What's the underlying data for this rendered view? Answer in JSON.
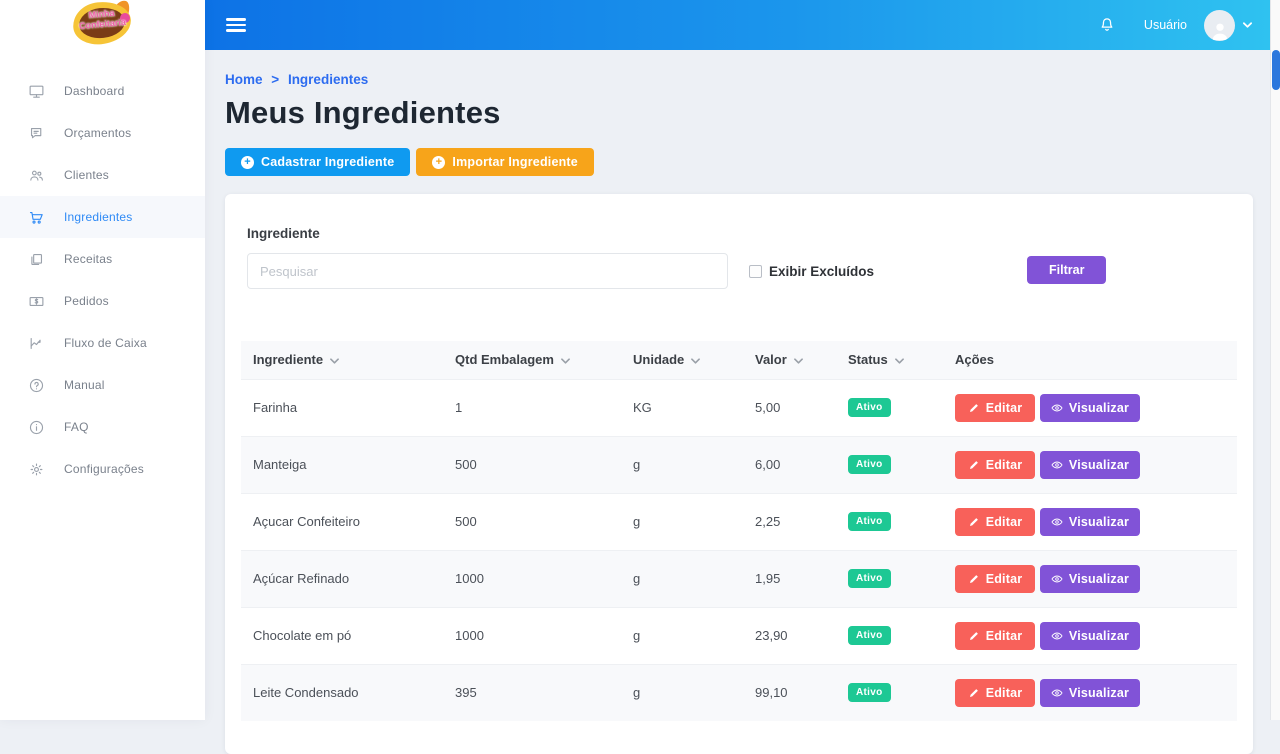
{
  "logo": {
    "line1": "Minha",
    "line2": "Confeitaria"
  },
  "sidebar": {
    "items": [
      {
        "id": "dashboard",
        "label": "Dashboard",
        "icon": "monitor-icon",
        "active": false
      },
      {
        "id": "orcamentos",
        "label": "Orçamentos",
        "icon": "chat-icon",
        "active": false
      },
      {
        "id": "clientes",
        "label": "Clientes",
        "icon": "users-icon",
        "active": false
      },
      {
        "id": "ingredientes",
        "label": "Ingredientes",
        "icon": "cart-icon",
        "active": true
      },
      {
        "id": "receitas",
        "label": "Receitas",
        "icon": "copy-icon",
        "active": false
      },
      {
        "id": "pedidos",
        "label": "Pedidos",
        "icon": "banknote-icon",
        "active": false
      },
      {
        "id": "fluxo-de-caixa",
        "label": "Fluxo de Caixa",
        "icon": "chart-icon",
        "active": false
      },
      {
        "id": "manual",
        "label": "Manual",
        "icon": "question-icon",
        "active": false
      },
      {
        "id": "faq",
        "label": "FAQ",
        "icon": "info-icon",
        "active": false
      },
      {
        "id": "configuracoes",
        "label": "Configurações",
        "icon": "gear-icon",
        "active": false
      }
    ]
  },
  "topbar": {
    "user_label": "Usuário"
  },
  "breadcrumb": {
    "home": "Home",
    "separator": ">",
    "current": "Ingredientes"
  },
  "page": {
    "title": "Meus Ingredientes"
  },
  "actions": {
    "register_label": "Cadastrar Ingrediente",
    "import_label": "Importar Ingrediente"
  },
  "filter": {
    "label": "Ingrediente",
    "placeholder": "Pesquisar",
    "checkbox_label": "Exibir Excluídos",
    "button_label": "Filtrar"
  },
  "table": {
    "headers": [
      {
        "label": "Ingrediente",
        "sortable": true
      },
      {
        "label": "Qtd Embalagem",
        "sortable": true
      },
      {
        "label": "Unidade",
        "sortable": true
      },
      {
        "label": "Valor",
        "sortable": true
      },
      {
        "label": "Status",
        "sortable": true
      },
      {
        "label": "Ações",
        "sortable": false
      }
    ],
    "edit_label": "Editar",
    "view_label": "Visualizar",
    "rows": [
      {
        "name": "Farinha",
        "qty": "1",
        "unit": "KG",
        "value": "5,00",
        "status": "Ativo"
      },
      {
        "name": "Manteiga",
        "qty": "500",
        "unit": "g",
        "value": "6,00",
        "status": "Ativo"
      },
      {
        "name": "Açucar Confeiteiro",
        "qty": "500",
        "unit": "g",
        "value": "2,25",
        "status": "Ativo"
      },
      {
        "name": "Açúcar Refinado",
        "qty": "1000",
        "unit": "g",
        "value": "1,95",
        "status": "Ativo"
      },
      {
        "name": "Chocolate em pó",
        "qty": "1000",
        "unit": "g",
        "value": "23,90",
        "status": "Ativo"
      },
      {
        "name": "Leite Condensado",
        "qty": "395",
        "unit": "g",
        "value": "99,10",
        "status": "Ativo"
      }
    ]
  },
  "colors": {
    "topbar_gradient_start": "#0d72e6",
    "topbar_gradient_end": "#2fc2f0",
    "register_button": "#0f9af0",
    "import_button": "#f7a41a",
    "filter_button": "#8153d7",
    "edit_button": "#f8615a",
    "view_button": "#8153d7",
    "status_active": "#1dc894",
    "breadcrumb_link": "#2d6cf0",
    "sidebar_active": "#2f8af5"
  }
}
